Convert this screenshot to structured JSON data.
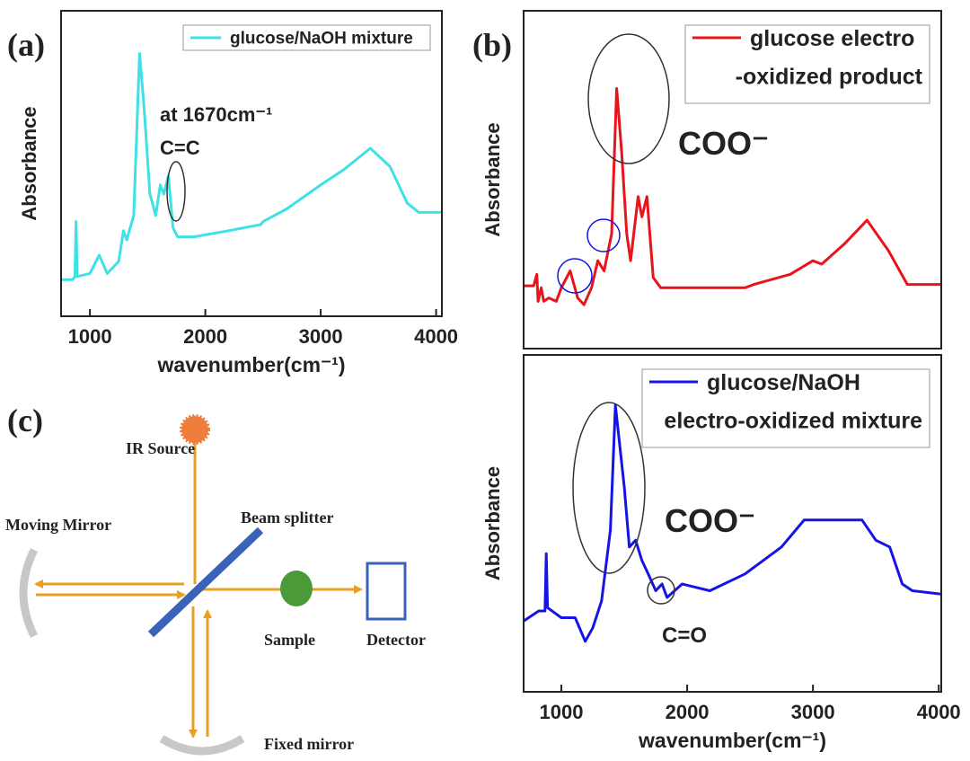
{
  "panel_labels": [
    "(a)",
    "(b)",
    "(c)"
  ],
  "chart_data": [
    {
      "type": "line",
      "xlabel": "wavenumber(cm⁻¹)",
      "ylabel": "Absorbance",
      "xlim": [
        750,
        4050
      ],
      "ylim": [
        0,
        100
      ],
      "xticks": [
        1000,
        2000,
        3000,
        4000
      ],
      "legend": "upper right",
      "annotations": [
        "at 1670cm⁻¹",
        "C=C"
      ],
      "x": [
        750,
        850,
        870,
        880,
        890,
        1000,
        1080,
        1150,
        1250,
        1290,
        1320,
        1380,
        1430,
        1470,
        1520,
        1570,
        1610,
        1640,
        1680,
        1720,
        1760,
        1900,
        2200,
        2480,
        2500,
        2700,
        3000,
        3200,
        3430,
        3600,
        3750,
        3850,
        4050
      ],
      "series": [
        {
          "name": "glucose/NaOH mixture",
          "color": "#3fe0e6",
          "values": [
            12,
            12,
            13,
            31,
            13,
            14,
            20,
            14,
            18,
            28,
            25,
            33,
            86,
            68,
            40,
            33,
            43,
            40,
            46,
            29,
            26,
            26,
            28,
            30,
            31,
            35,
            43,
            48,
            55,
            49,
            37,
            34,
            34
          ]
        }
      ]
    },
    {
      "type": "line",
      "ylabel": "Absorbance",
      "xlim": [
        700,
        4020
      ],
      "ylim": [
        0,
        100
      ],
      "legend": "upper right",
      "annotations": [
        "COO⁻"
      ],
      "x": [
        700,
        780,
        805,
        815,
        840,
        860,
        900,
        960,
        1000,
        1070,
        1130,
        1180,
        1240,
        1290,
        1340,
        1400,
        1440,
        1480,
        1520,
        1550,
        1610,
        1640,
        1680,
        1730,
        1790,
        2000,
        2460,
        2530,
        2820,
        3000,
        3070,
        3250,
        3430,
        3600,
        3750,
        4020
      ],
      "series": [
        {
          "name": "glucose electro\n-oxidized product",
          "color": "#e8141c",
          "values": [
            18.6,
            18.6,
            22,
            14,
            18,
            14,
            15,
            14,
            18,
            23,
            15,
            13,
            18,
            26,
            23,
            34,
            77,
            58,
            34,
            26,
            45,
            39,
            45,
            21,
            18,
            18,
            18,
            19,
            22,
            26,
            25,
            31,
            38,
            29,
            19,
            19
          ]
        }
      ]
    },
    {
      "type": "line",
      "xlabel": "wavenumber(cm⁻¹)",
      "ylabel": "Absorbance",
      "xlim": [
        700,
        4020
      ],
      "ylim": [
        0,
        100
      ],
      "xticks": [
        1000,
        2000,
        3000,
        4000
      ],
      "legend": "upper right",
      "annotations": [
        "COO⁻",
        "C=O"
      ],
      "x": [
        700,
        820,
        870,
        880,
        890,
        1000,
        1110,
        1190,
        1250,
        1320,
        1390,
        1430,
        1500,
        1540,
        1590,
        1640,
        1690,
        1750,
        1800,
        1840,
        1960,
        2180,
        2460,
        2750,
        2930,
        3390,
        3500,
        3610,
        3710,
        3790,
        4020
      ],
      "series": [
        {
          "name": "glucose/NaOH\nelectro-oxidized mixture",
          "color": "#1414e6",
          "values": [
            21,
            24,
            24,
            41,
            25,
            22,
            22,
            15,
            19,
            27,
            48,
            85,
            61,
            43,
            45,
            39,
            35,
            30,
            32,
            28,
            32,
            30,
            35,
            43,
            51,
            51,
            45,
            43,
            32,
            30,
            29
          ]
        }
      ]
    }
  ],
  "diagram": {
    "labels": [
      "IR Source",
      "Moving Mirror",
      "Beam splitter",
      "Sample",
      "Detector",
      "Fixed mirror"
    ]
  }
}
